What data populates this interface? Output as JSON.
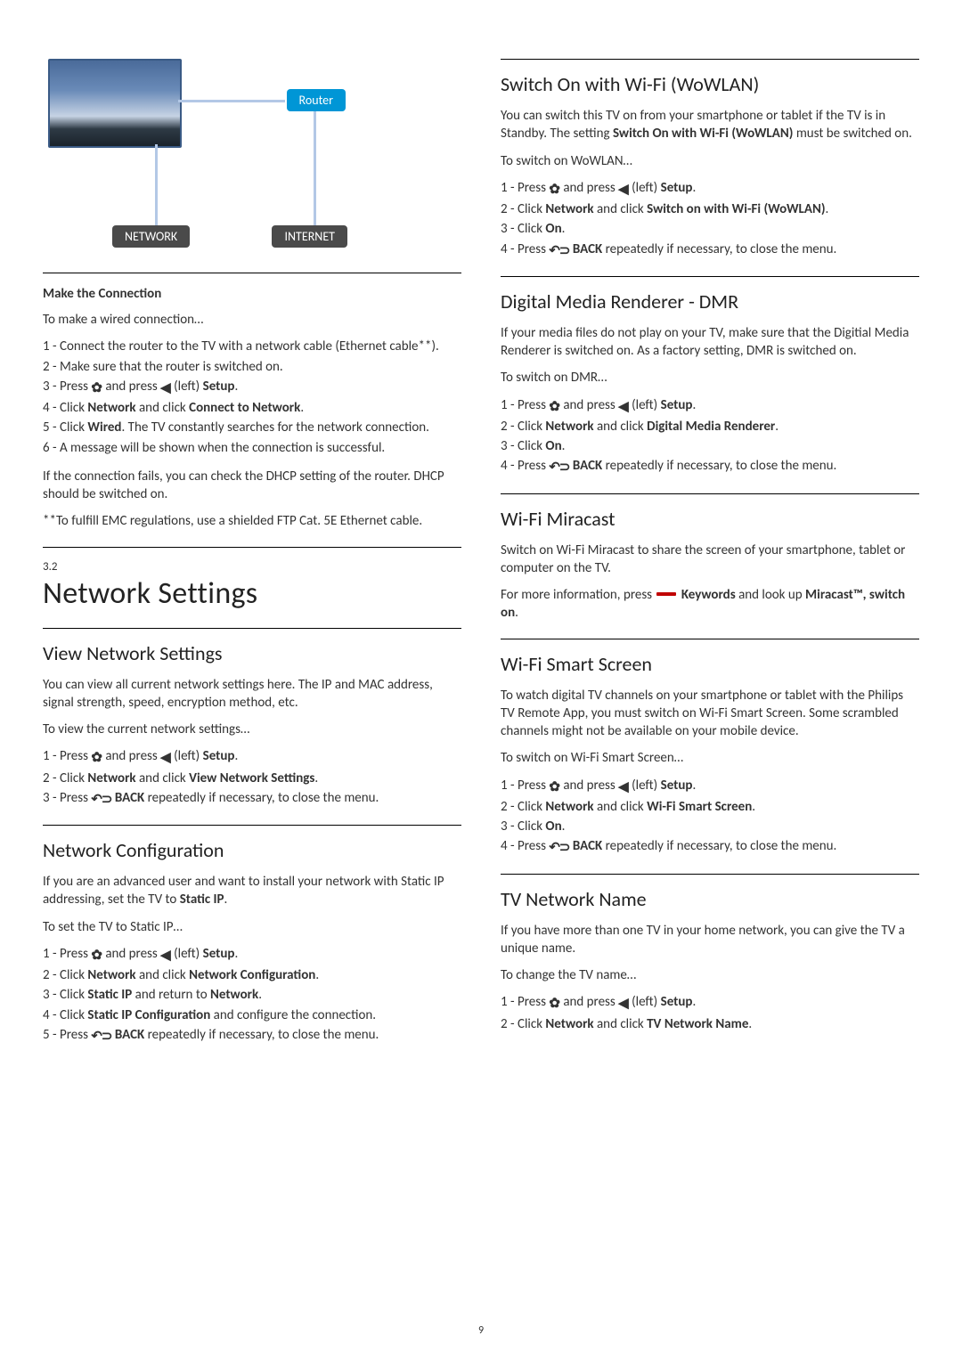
{
  "page_number": "9",
  "diagram": {
    "router_label": "Router",
    "network_label": "NETWORK",
    "internet_label": "INTERNET",
    "router_color": "#0096d6",
    "box_color": "#4a4a4a",
    "line_color": "#b3c8e6"
  },
  "left": {
    "make_connection": {
      "heading": "Make the Connection",
      "intro": "To make a wired connection…",
      "steps": {
        "s1": "1 - Connect the router to the TV with a network cable (Ethernet cable**).",
        "s2": "2 - Make sure that the router is switched on.",
        "s3a": "3 - Press ",
        "s3b": " and press ",
        "s3c": " (left) ",
        "s3d": "Setup",
        "s3e": ".",
        "s4a": "4 - Click ",
        "s4b": "Network",
        "s4c": " and click ",
        "s4d": "Connect to Network",
        "s4e": ".",
        "s5a": "5 - Click ",
        "s5b": "Wired",
        "s5c": ". The TV constantly searches for the network connection.",
        "s6": "6 - A message will be shown when the connection is successful."
      },
      "fail": "If the connection fails, you can check the DHCP setting of the router. DHCP should be switched on.",
      "emc": "**To fulfill EMC regulations, use a shielded FTP Cat. 5E Ethernet cable."
    },
    "network_settings": {
      "num": "3.2",
      "title": "Network Settings"
    },
    "view_settings": {
      "heading": "View Network Settings",
      "p1": " You can view all current network settings here. The IP and MAC address, signal strength, speed, encryption method, etc.",
      "p2": " To view the current network settings…",
      "s1a": "1 - Press ",
      "s1b": " and press ",
      "s1c": " (left) ",
      "s1d": "Setup",
      "s1e": ".",
      "s2a": "2 - Click ",
      "s2b": "Network",
      "s2c": " and click ",
      "s2d": "View Network Settings",
      "s2e": ".",
      "s3a": "3 - Press ",
      "s3b": " BACK",
      "s3c": " repeatedly if necessary, to close the menu."
    },
    "net_config": {
      "heading": "Network Configuration",
      "p1a": "If you are an advanced user and want to install your network with Static IP addressing, set the TV to ",
      "p1b": "Static IP",
      "p1c": ".",
      "p2": "To set the TV to Static IP…",
      "s1a": "1 - Press ",
      "s1b": " and press ",
      "s1c": " (left) ",
      "s1d": "Setup",
      "s1e": ".",
      "s2a": "2 - Click ",
      "s2b": "Network",
      "s2c": " and click ",
      "s2d": "Network Configuration",
      "s2e": ".",
      "s3a": "3 - Click ",
      "s3b": "Static IP",
      "s3c": " and return to ",
      "s3d": "Network",
      "s3e": ".",
      "s4a": "4 - Click ",
      "s4b": "Static IP Configuration",
      "s4c": " and configure the connection.",
      "s5a": "5 - Press ",
      "s5b": " BACK",
      "s5c": " repeatedly if necessary, to close the menu."
    }
  },
  "right": {
    "wowlan": {
      "heading": "Switch On with Wi-Fi (WoWLAN)",
      "p1a": "You can switch this TV on from your smartphone or tablet if the TV is in Standby. The setting ",
      "p1b": "Switch On with Wi-Fi (WoWLAN)",
      "p1c": " must be switched on.",
      "p2": "To switch on WoWLAN…",
      "s1a": "1 - Press ",
      "s1b": " and press ",
      "s1c": " (left) ",
      "s1d": "Setup",
      "s1e": ".",
      "s2a": "2 - Click ",
      "s2b": "Network",
      "s2c": " and click ",
      "s2d": "Switch on with Wi-Fi (WoWLAN)",
      "s2e": ".",
      "s3a": "3 - Click ",
      "s3b": "On",
      "s3c": ".",
      "s4a": "4 - Press ",
      "s4b": " BACK",
      "s4c": " repeatedly if necessary, to close the menu."
    },
    "dmr": {
      "heading": "Digital Media Renderer - DMR",
      "p1": "If your media files do not play on your TV, make sure that the Digitial Media Renderer is switched on. As a factory setting, DMR is switched on.",
      "p2": "To switch on DMR…",
      "s1a": "1 - Press ",
      "s1b": " and press ",
      "s1c": " (left) ",
      "s1d": "Setup",
      "s1e": ".",
      "s2a": "2 - Click ",
      "s2b": "Network",
      "s2c": " and click ",
      "s2d": "Digital Media Renderer",
      "s2e": ".",
      "s3a": "3 - Click ",
      "s3b": "On",
      "s3c": ".",
      "s4a": "4 - Press ",
      "s4b": " BACK",
      "s4c": " repeatedly if necessary, to close the menu."
    },
    "miracast": {
      "heading": "Wi-Fi Miracast",
      "p1": "Switch on Wi-Fi Miracast to share the screen of your smartphone, tablet or computer on the TV.",
      "p2a": "For more information, press ",
      "p2b": " Keywords",
      "p2c": " and look up ",
      "p2d": "Miracast™, switch on",
      "p2e": "."
    },
    "smart": {
      "heading": "Wi-Fi Smart Screen",
      "p1": "To watch digital TV channels on your smartphone or tablet with the Philips TV Remote App, you must switch on Wi-Fi Smart Screen. Some scrambled channels might not be available on your mobile device.",
      "p2": "To switch on Wi-Fi Smart Screen…",
      "s1a": "1 - Press ",
      "s1b": " and press ",
      "s1c": " (left) ",
      "s1d": "Setup",
      "s1e": ".",
      "s2a": "2 - Click ",
      "s2b": "Network",
      "s2c": " and click ",
      "s2d": "Wi-Fi Smart Screen",
      "s2e": ".",
      "s3a": "3 - Click ",
      "s3b": "On",
      "s3c": ".",
      "s4a": "4 - Press ",
      "s4b": " BACK",
      "s4c": " repeatedly if necessary, to close the menu."
    },
    "tvname": {
      "heading": "TV Network Name",
      "p1": "If you have more than one TV in your home network, you can give the TV a unique name.",
      "p2": "To change the TV name…",
      "s1a": "1 - Press ",
      "s1b": " and press ",
      "s1c": " (left) ",
      "s1d": "Setup",
      "s1e": ".",
      "s2a": "2 - Click ",
      "s2b": "Network",
      "s2c": " and click ",
      "s2d": "TV Network Name",
      "s2e": "."
    }
  },
  "icons": {
    "gear": "✿",
    "left": "◀",
    "back": "↶⊃"
  }
}
